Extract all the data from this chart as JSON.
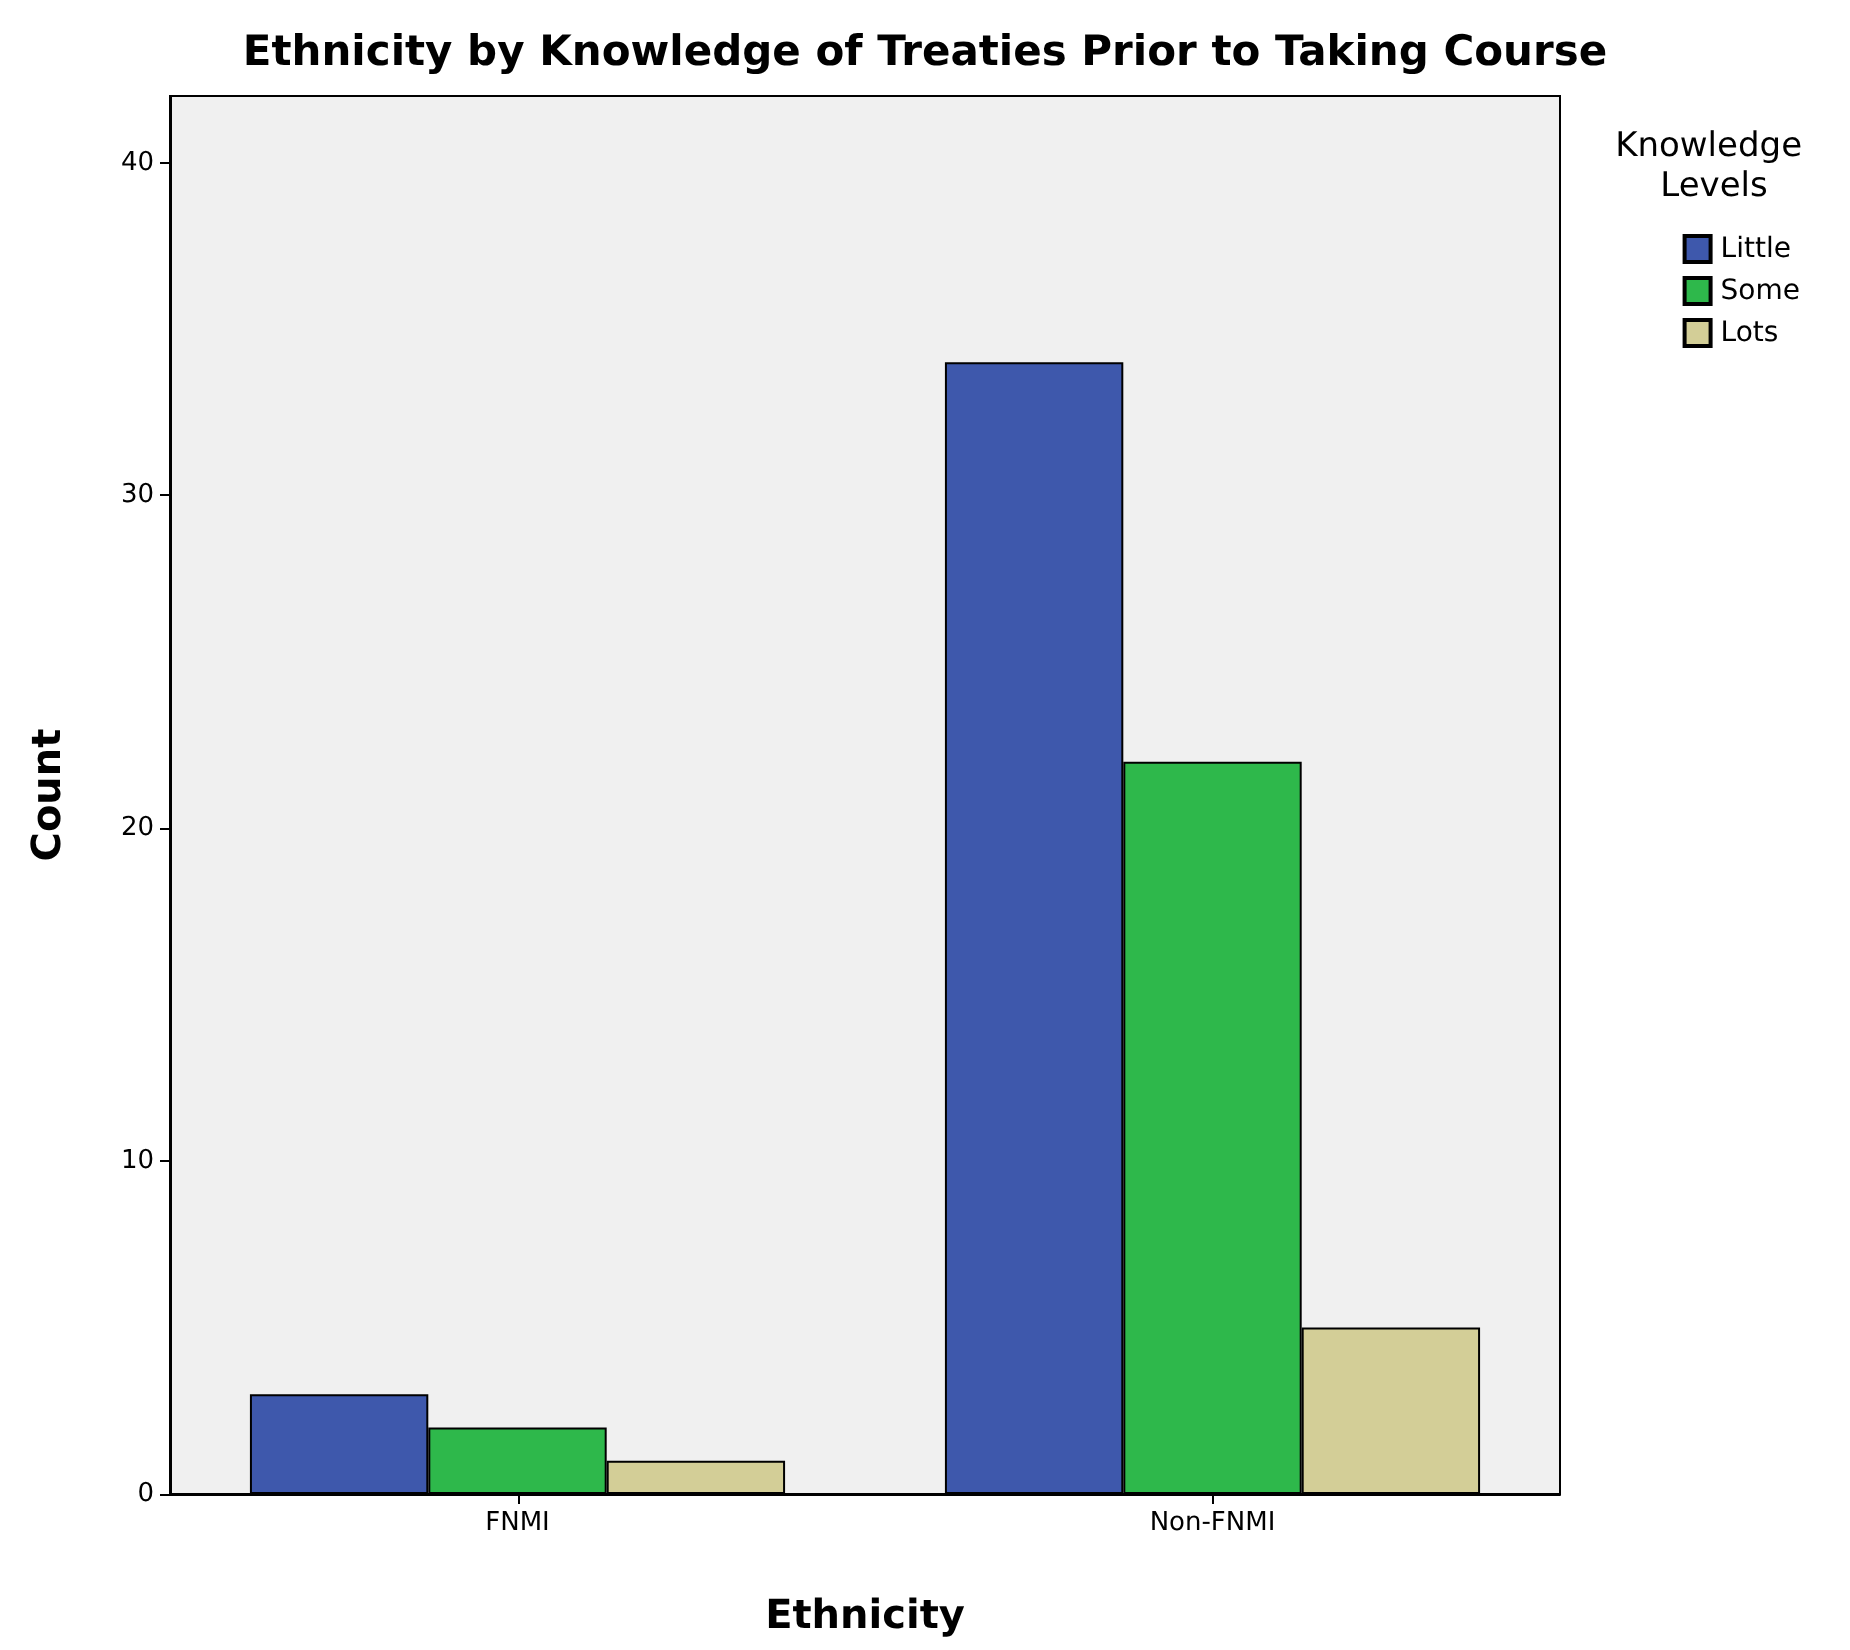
{
  "chart_data": {
    "type": "bar",
    "title": "Ethnicity by Knowledge of Treaties Prior to Taking Course",
    "xlabel": "Ethnicity",
    "ylabel": "Count",
    "legend_title": "Knowledge Levels",
    "categories": [
      "FNMI",
      "Non-FNMI"
    ],
    "series": [
      {
        "name": "Little",
        "color": "#3e58ac",
        "values": [
          3,
          34
        ]
      },
      {
        "name": "Some",
        "color": "#2eb84b",
        "values": [
          2,
          22
        ]
      },
      {
        "name": "Lots",
        "color": "#d3ce97",
        "values": [
          1,
          5
        ]
      }
    ],
    "ylim": [
      0,
      42
    ],
    "yticks": [
      0,
      10,
      20,
      30,
      40
    ],
    "grid": false,
    "legend": "top right"
  }
}
